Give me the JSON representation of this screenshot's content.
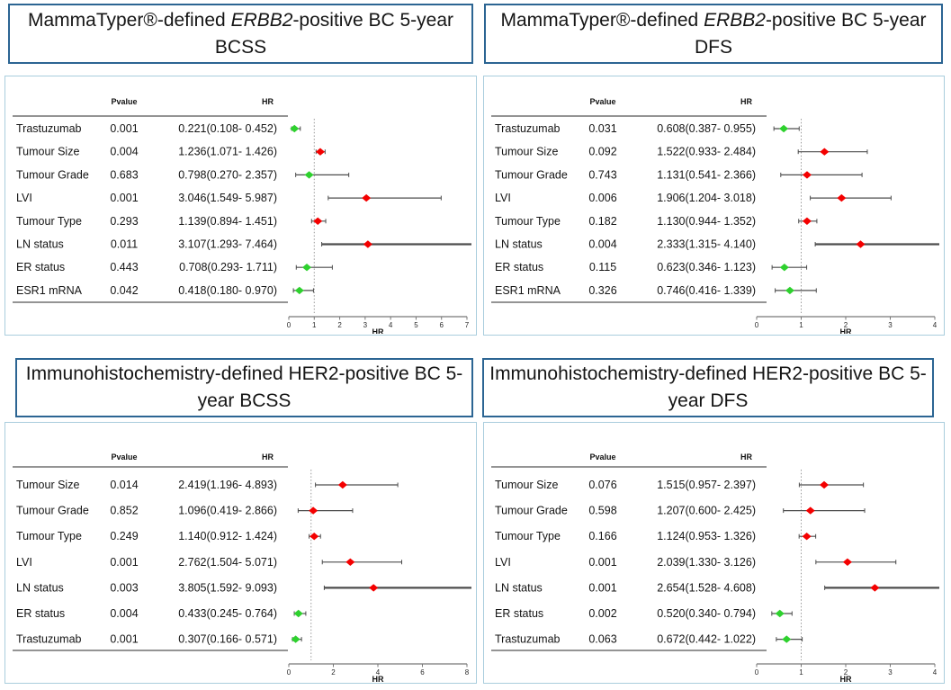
{
  "colors": {
    "marker_increase": "#f40000",
    "marker_decrease": "#2ed12e",
    "title_border": "#2c6593",
    "panel_border": "#a9cddd",
    "ci_line": "#4d4d4d",
    "ref_line": "#999999"
  },
  "chart_data": [
    {
      "type": "scatter",
      "subtype": "forest-plot",
      "title_pre": "MammaTyper®-defined ",
      "title_italic": "ERBB2",
      "title_post": "-positive BC 5-year BCSS",
      "col_pvalue": "Pvalue",
      "col_hr": "HR",
      "xlabel": "HR",
      "xlim": [
        0,
        7
      ],
      "xticks": [
        0,
        1,
        2,
        3,
        4,
        5,
        6,
        7
      ],
      "ref_x": 1,
      "rows": [
        {
          "label": "Trastuzumab",
          "pvalue": "0.001",
          "hr_ci": "0.221(0.108- 0.452)",
          "hr": 0.221,
          "lo": 0.108,
          "hi": 0.452,
          "dir": "decrease"
        },
        {
          "label": "Tumour Size",
          "pvalue": "0.004",
          "hr_ci": "1.236(1.071- 1.426)",
          "hr": 1.236,
          "lo": 1.071,
          "hi": 1.426,
          "dir": "increase"
        },
        {
          "label": "Tumour Grade",
          "pvalue": "0.683",
          "hr_ci": "0.798(0.270- 2.357)",
          "hr": 0.798,
          "lo": 0.27,
          "hi": 2.357,
          "dir": "decrease"
        },
        {
          "label": "LVI",
          "pvalue": "0.001",
          "hr_ci": "3.046(1.549- 5.987)",
          "hr": 3.046,
          "lo": 1.549,
          "hi": 5.987,
          "dir": "increase"
        },
        {
          "label": "Tumour Type",
          "pvalue": "0.293",
          "hr_ci": "1.139(0.894- 1.451)",
          "hr": 1.139,
          "lo": 0.894,
          "hi": 1.451,
          "dir": "increase"
        },
        {
          "label": "LN status",
          "pvalue": "0.011",
          "hr_ci": "3.107(1.293- 7.464)",
          "hr": 3.107,
          "lo": 1.293,
          "hi": 7.464,
          "dir": "increase"
        },
        {
          "label": "ER status",
          "pvalue": "0.443",
          "hr_ci": "0.708(0.293- 1.711)",
          "hr": 0.708,
          "lo": 0.293,
          "hi": 1.711,
          "dir": "decrease"
        },
        {
          "label": "ESR1 mRNA",
          "pvalue": "0.042",
          "hr_ci": "0.418(0.180- 0.970)",
          "hr": 0.418,
          "lo": 0.18,
          "hi": 0.97,
          "dir": "decrease"
        }
      ]
    },
    {
      "type": "scatter",
      "subtype": "forest-plot",
      "title_pre": "MammaTyper®-defined ",
      "title_italic": "ERBB2",
      "title_post": "-positive BC 5-year DFS",
      "col_pvalue": "Pvalue",
      "col_hr": "HR",
      "xlabel": "HR",
      "xlim": [
        0,
        4
      ],
      "xticks": [
        0,
        1,
        2,
        3,
        4
      ],
      "ref_x": 1,
      "rows": [
        {
          "label": "Trastuzumab",
          "pvalue": "0.031",
          "hr_ci": "0.608(0.387- 0.955)",
          "hr": 0.608,
          "lo": 0.387,
          "hi": 0.955,
          "dir": "decrease"
        },
        {
          "label": "Tumour Size",
          "pvalue": "0.092",
          "hr_ci": "1.522(0.933- 2.484)",
          "hr": 1.522,
          "lo": 0.933,
          "hi": 2.484,
          "dir": "increase"
        },
        {
          "label": "Tumour Grade",
          "pvalue": "0.743",
          "hr_ci": "1.131(0.541- 2.366)",
          "hr": 1.131,
          "lo": 0.541,
          "hi": 2.366,
          "dir": "increase"
        },
        {
          "label": "LVI",
          "pvalue": "0.006",
          "hr_ci": "1.906(1.204- 3.018)",
          "hr": 1.906,
          "lo": 1.204,
          "hi": 3.018,
          "dir": "increase"
        },
        {
          "label": "Tumour Type",
          "pvalue": "0.182",
          "hr_ci": "1.130(0.944- 1.352)",
          "hr": 1.13,
          "lo": 0.944,
          "hi": 1.352,
          "dir": "increase"
        },
        {
          "label": "LN status",
          "pvalue": "0.004",
          "hr_ci": "2.333(1.315- 4.140)",
          "hr": 2.333,
          "lo": 1.315,
          "hi": 4.14,
          "dir": "increase"
        },
        {
          "label": "ER status",
          "pvalue": "0.115",
          "hr_ci": "0.623(0.346- 1.123)",
          "hr": 0.623,
          "lo": 0.346,
          "hi": 1.123,
          "dir": "decrease"
        },
        {
          "label": "ESR1 mRNA",
          "pvalue": "0.326",
          "hr_ci": "0.746(0.416- 1.339)",
          "hr": 0.746,
          "lo": 0.416,
          "hi": 1.339,
          "dir": "decrease"
        }
      ]
    },
    {
      "type": "scatter",
      "subtype": "forest-plot",
      "title_pre": "Immunohistochemistry-defined HER2-positive BC 5-year BCSS",
      "title_italic": "",
      "title_post": "",
      "col_pvalue": "Pvalue",
      "col_hr": "HR",
      "xlabel": "HR",
      "xlim": [
        0,
        8
      ],
      "xticks": [
        0,
        2,
        4,
        6,
        8
      ],
      "ref_x": 1,
      "rows": [
        {
          "label": "Tumour Size",
          "pvalue": "0.014",
          "hr_ci": "2.419(1.196- 4.893)",
          "hr": 2.419,
          "lo": 1.196,
          "hi": 4.893,
          "dir": "increase"
        },
        {
          "label": "Tumour Grade",
          "pvalue": "0.852",
          "hr_ci": "1.096(0.419- 2.866)",
          "hr": 1.096,
          "lo": 0.419,
          "hi": 2.866,
          "dir": "increase"
        },
        {
          "label": "Tumour Type",
          "pvalue": "0.249",
          "hr_ci": "1.140(0.912- 1.424)",
          "hr": 1.14,
          "lo": 0.912,
          "hi": 1.424,
          "dir": "increase"
        },
        {
          "label": "LVI",
          "pvalue": "0.001",
          "hr_ci": "2.762(1.504- 5.071)",
          "hr": 2.762,
          "lo": 1.504,
          "hi": 5.071,
          "dir": "increase"
        },
        {
          "label": "LN status",
          "pvalue": "0.003",
          "hr_ci": "3.805(1.592- 9.093)",
          "hr": 3.805,
          "lo": 1.592,
          "hi": 9.093,
          "dir": "increase"
        },
        {
          "label": "ER status",
          "pvalue": "0.004",
          "hr_ci": "0.433(0.245- 0.764)",
          "hr": 0.433,
          "lo": 0.245,
          "hi": 0.764,
          "dir": "decrease"
        },
        {
          "label": "Trastuzumab",
          "pvalue": "0.001",
          "hr_ci": "0.307(0.166- 0.571)",
          "hr": 0.307,
          "lo": 0.166,
          "hi": 0.571,
          "dir": "decrease"
        }
      ]
    },
    {
      "type": "scatter",
      "subtype": "forest-plot",
      "title_pre": "Immunohistochemistry-defined HER2-positive BC 5-year DFS",
      "title_italic": "",
      "title_post": "",
      "col_pvalue": "Pvalue",
      "col_hr": "HR",
      "xlabel": "HR",
      "xlim": [
        0,
        4
      ],
      "xticks": [
        0,
        1,
        2,
        3,
        4
      ],
      "ref_x": 1,
      "rows": [
        {
          "label": "Tumour Size",
          "pvalue": "0.076",
          "hr_ci": "1.515(0.957- 2.397)",
          "hr": 1.515,
          "lo": 0.957,
          "hi": 2.397,
          "dir": "increase"
        },
        {
          "label": "Tumour Grade",
          "pvalue": "0.598",
          "hr_ci": "1.207(0.600- 2.425)",
          "hr": 1.207,
          "lo": 0.6,
          "hi": 2.425,
          "dir": "increase"
        },
        {
          "label": "Tumour Type",
          "pvalue": "0.166",
          "hr_ci": "1.124(0.953- 1.326)",
          "hr": 1.124,
          "lo": 0.953,
          "hi": 1.326,
          "dir": "increase"
        },
        {
          "label": "LVI",
          "pvalue": "0.001",
          "hr_ci": "2.039(1.330- 3.126)",
          "hr": 2.039,
          "lo": 1.33,
          "hi": 3.126,
          "dir": "increase"
        },
        {
          "label": "LN status",
          "pvalue": "0.001",
          "hr_ci": "2.654(1.528- 4.608)",
          "hr": 2.654,
          "lo": 1.528,
          "hi": 4.608,
          "dir": "increase"
        },
        {
          "label": "ER status",
          "pvalue": "0.002",
          "hr_ci": "0.520(0.340- 0.794)",
          "hr": 0.52,
          "lo": 0.34,
          "hi": 0.794,
          "dir": "decrease"
        },
        {
          "label": "Trastuzumab",
          "pvalue": "0.063",
          "hr_ci": "0.672(0.442- 1.022)",
          "hr": 0.672,
          "lo": 0.442,
          "hi": 1.022,
          "dir": "decrease"
        }
      ]
    }
  ]
}
